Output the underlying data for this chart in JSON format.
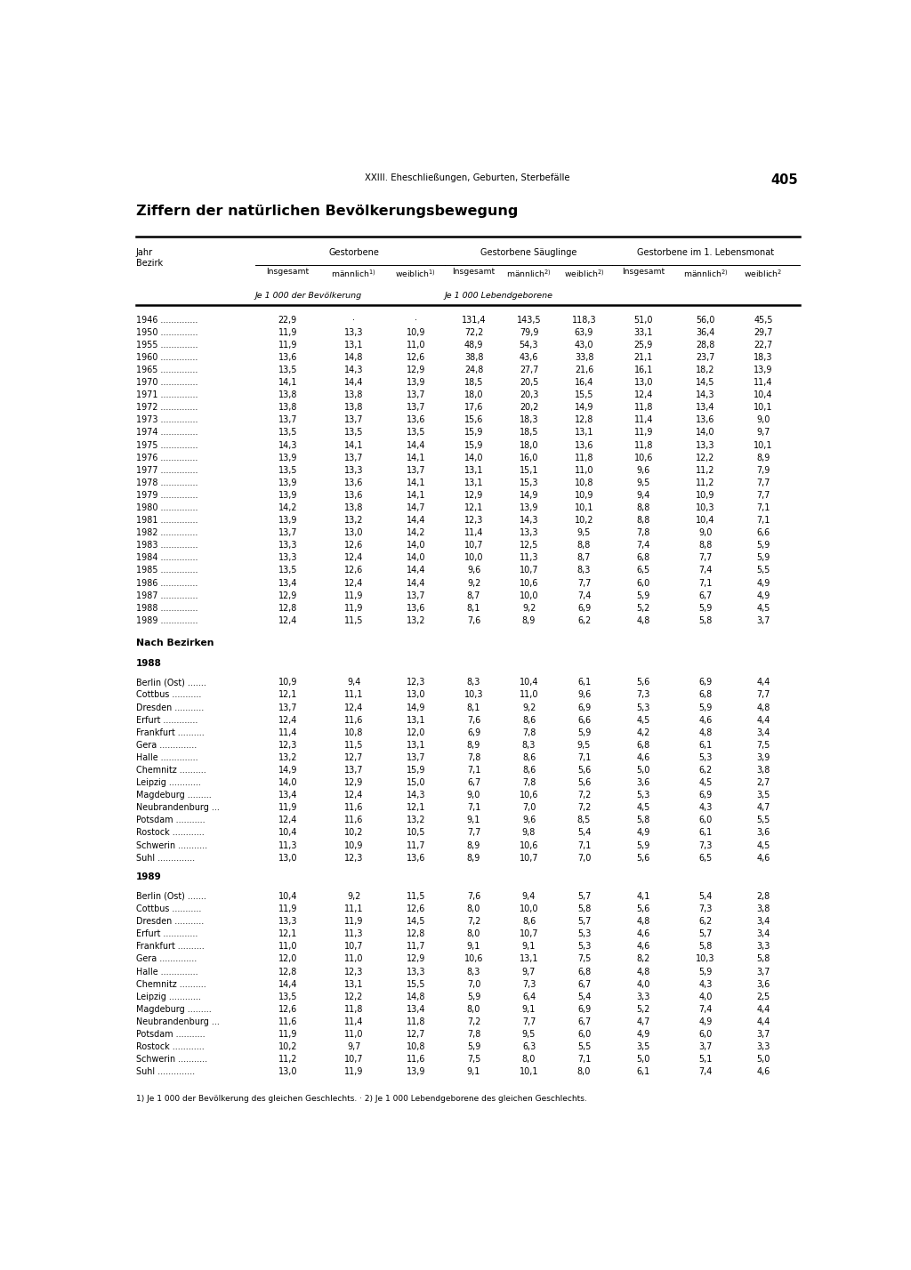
{
  "page_header": "XXIII. Eheschließungen, Geburten, Sterbefälle",
  "page_number": "405",
  "title": "Ziffern der natürlichen Bevölkerungsbewegung",
  "data_years": [
    [
      "1946 ..............",
      "22,9",
      "·",
      "·",
      "131,4",
      "143,5",
      "118,3",
      "51,0",
      "56,0",
      "45,5"
    ],
    [
      "1950 ..............",
      "11,9",
      "13,3",
      "10,9",
      "72,2",
      "79,9",
      "63,9",
      "33,1",
      "36,4",
      "29,7"
    ],
    [
      "1955 ..............",
      "11,9",
      "13,1",
      "11,0",
      "48,9",
      "54,3",
      "43,0",
      "25,9",
      "28,8",
      "22,7"
    ],
    [
      "1960 ..............",
      "13,6",
      "14,8",
      "12,6",
      "38,8",
      "43,6",
      "33,8",
      "21,1",
      "23,7",
      "18,3"
    ],
    [
      "1965 ..............",
      "13,5",
      "14,3",
      "12,9",
      "24,8",
      "27,7",
      "21,6",
      "16,1",
      "18,2",
      "13,9"
    ],
    [
      "1970 ..............",
      "14,1",
      "14,4",
      "13,9",
      "18,5",
      "20,5",
      "16,4",
      "13,0",
      "14,5",
      "11,4"
    ],
    [
      "1971 ..............",
      "13,8",
      "13,8",
      "13,7",
      "18,0",
      "20,3",
      "15,5",
      "12,4",
      "14,3",
      "10,4"
    ],
    [
      "1972 ..............",
      "13,8",
      "13,8",
      "13,7",
      "17,6",
      "20,2",
      "14,9",
      "11,8",
      "13,4",
      "10,1"
    ],
    [
      "1973 ..............",
      "13,7",
      "13,7",
      "13,6",
      "15,6",
      "18,3",
      "12,8",
      "11,4",
      "13,6",
      "9,0"
    ],
    [
      "1974 ..............",
      "13,5",
      "13,5",
      "13,5",
      "15,9",
      "18,5",
      "13,1",
      "11,9",
      "14,0",
      "9,7"
    ],
    [
      "1975 ..............",
      "14,3",
      "14,1",
      "14,4",
      "15,9",
      "18,0",
      "13,6",
      "11,8",
      "13,3",
      "10,1"
    ],
    [
      "1976 ..............",
      "13,9",
      "13,7",
      "14,1",
      "14,0",
      "16,0",
      "11,8",
      "10,6",
      "12,2",
      "8,9"
    ],
    [
      "1977 ..............",
      "13,5",
      "13,3",
      "13,7",
      "13,1",
      "15,1",
      "11,0",
      "9,6",
      "11,2",
      "7,9"
    ],
    [
      "1978 ..............",
      "13,9",
      "13,6",
      "14,1",
      "13,1",
      "15,3",
      "10,8",
      "9,5",
      "11,2",
      "7,7"
    ],
    [
      "1979 ..............",
      "13,9",
      "13,6",
      "14,1",
      "12,9",
      "14,9",
      "10,9",
      "9,4",
      "10,9",
      "7,7"
    ],
    [
      "1980 ..............",
      "14,2",
      "13,8",
      "14,7",
      "12,1",
      "13,9",
      "10,1",
      "8,8",
      "10,3",
      "7,1"
    ],
    [
      "1981 ..............",
      "13,9",
      "13,2",
      "14,4",
      "12,3",
      "14,3",
      "10,2",
      "8,8",
      "10,4",
      "7,1"
    ],
    [
      "1982 ..............",
      "13,7",
      "13,0",
      "14,2",
      "11,4",
      "13,3",
      "9,5",
      "7,8",
      "9,0",
      "6,6"
    ],
    [
      "1983 ..............",
      "13,3",
      "12,6",
      "14,0",
      "10,7",
      "12,5",
      "8,8",
      "7,4",
      "8,8",
      "5,9"
    ],
    [
      "1984 ..............",
      "13,3",
      "12,4",
      "14,0",
      "10,0",
      "11,3",
      "8,7",
      "6,8",
      "7,7",
      "5,9"
    ],
    [
      "1985 ..............",
      "13,5",
      "12,6",
      "14,4",
      "9,6",
      "10,7",
      "8,3",
      "6,5",
      "7,4",
      "5,5"
    ],
    [
      "1986 ..............",
      "13,4",
      "12,4",
      "14,4",
      "9,2",
      "10,6",
      "7,7",
      "6,0",
      "7,1",
      "4,9"
    ],
    [
      "1987 ..............",
      "12,9",
      "11,9",
      "13,7",
      "8,7",
      "10,0",
      "7,4",
      "5,9",
      "6,7",
      "4,9"
    ],
    [
      "1988 ..............",
      "12,8",
      "11,9",
      "13,6",
      "8,1",
      "9,2",
      "6,9",
      "5,2",
      "5,9",
      "4,5"
    ],
    [
      "1989 ..............",
      "12,4",
      "11,5",
      "13,2",
      "7,6",
      "8,9",
      "6,2",
      "4,8",
      "5,8",
      "3,7"
    ]
  ],
  "section_bezirke": "Nach Bezirken",
  "section_1988": "1988",
  "data_1988": [
    [
      "Berlin (Ost) .......",
      "10,9",
      "9,4",
      "12,3",
      "8,3",
      "10,4",
      "6,1",
      "5,6",
      "6,9",
      "4,4"
    ],
    [
      "Cottbus ...........",
      "12,1",
      "11,1",
      "13,0",
      "10,3",
      "11,0",
      "9,6",
      "7,3",
      "6,8",
      "7,7"
    ],
    [
      "Dresden ...........",
      "13,7",
      "12,4",
      "14,9",
      "8,1",
      "9,2",
      "6,9",
      "5,3",
      "5,9",
      "4,8"
    ],
    [
      "Erfurt .............",
      "12,4",
      "11,6",
      "13,1",
      "7,6",
      "8,6",
      "6,6",
      "4,5",
      "4,6",
      "4,4"
    ],
    [
      "Frankfurt ..........",
      "11,4",
      "10,8",
      "12,0",
      "6,9",
      "7,8",
      "5,9",
      "4,2",
      "4,8",
      "3,4"
    ],
    [
      "Gera ..............",
      "12,3",
      "11,5",
      "13,1",
      "8,9",
      "8,3",
      "9,5",
      "6,8",
      "6,1",
      "7,5"
    ],
    [
      "Halle ..............",
      "13,2",
      "12,7",
      "13,7",
      "7,8",
      "8,6",
      "7,1",
      "4,6",
      "5,3",
      "3,9"
    ],
    [
      "Chemnitz ..........",
      "14,9",
      "13,7",
      "15,9",
      "7,1",
      "8,6",
      "5,6",
      "5,0",
      "6,2",
      "3,8"
    ],
    [
      "Leipzig ............",
      "14,0",
      "12,9",
      "15,0",
      "6,7",
      "7,8",
      "5,6",
      "3,6",
      "4,5",
      "2,7"
    ],
    [
      "Magdeburg .........",
      "13,4",
      "12,4",
      "14,3",
      "9,0",
      "10,6",
      "7,2",
      "5,3",
      "6,9",
      "3,5"
    ],
    [
      "Neubrandenburg ...",
      "11,9",
      "11,6",
      "12,1",
      "7,1",
      "7,0",
      "7,2",
      "4,5",
      "4,3",
      "4,7"
    ],
    [
      "Potsdam ...........",
      "12,4",
      "11,6",
      "13,2",
      "9,1",
      "9,6",
      "8,5",
      "5,8",
      "6,0",
      "5,5"
    ],
    [
      "Rostock ............",
      "10,4",
      "10,2",
      "10,5",
      "7,7",
      "9,8",
      "5,4",
      "4,9",
      "6,1",
      "3,6"
    ],
    [
      "Schwerin ...........",
      "11,3",
      "10,9",
      "11,7",
      "8,9",
      "10,6",
      "7,1",
      "5,9",
      "7,3",
      "4,5"
    ],
    [
      "Suhl ..............",
      "13,0",
      "12,3",
      "13,6",
      "8,9",
      "10,7",
      "7,0",
      "5,6",
      "6,5",
      "4,6"
    ]
  ],
  "section_1989": "1989",
  "data_1989": [
    [
      "Berlin (Ost) .......",
      "10,4",
      "9,2",
      "11,5",
      "7,6",
      "9,4",
      "5,7",
      "4,1",
      "5,4",
      "2,8"
    ],
    [
      "Cottbus ...........",
      "11,9",
      "11,1",
      "12,6",
      "8,0",
      "10,0",
      "5,8",
      "5,6",
      "7,3",
      "3,8"
    ],
    [
      "Dresden ...........",
      "13,3",
      "11,9",
      "14,5",
      "7,2",
      "8,6",
      "5,7",
      "4,8",
      "6,2",
      "3,4"
    ],
    [
      "Erfurt .............",
      "12,1",
      "11,3",
      "12,8",
      "8,0",
      "10,7",
      "5,3",
      "4,6",
      "5,7",
      "3,4"
    ],
    [
      "Frankfurt ..........",
      "11,0",
      "10,7",
      "11,7",
      "9,1",
      "9,1",
      "5,3",
      "4,6",
      "5,8",
      "3,3"
    ],
    [
      "Gera ..............",
      "12,0",
      "11,0",
      "12,9",
      "10,6",
      "13,1",
      "7,5",
      "8,2",
      "10,3",
      "5,8"
    ],
    [
      "Halle ..............",
      "12,8",
      "12,3",
      "13,3",
      "8,3",
      "9,7",
      "6,8",
      "4,8",
      "5,9",
      "3,7"
    ],
    [
      "Chemnitz ..........",
      "14,4",
      "13,1",
      "15,5",
      "7,0",
      "7,3",
      "6,7",
      "4,0",
      "4,3",
      "3,6"
    ],
    [
      "Leipzig ............",
      "13,5",
      "12,2",
      "14,8",
      "5,9",
      "6,4",
      "5,4",
      "3,3",
      "4,0",
      "2,5"
    ],
    [
      "Magdeburg .........",
      "12,6",
      "11,8",
      "13,4",
      "8,0",
      "9,1",
      "6,9",
      "5,2",
      "7,4",
      "4,4"
    ],
    [
      "Neubrandenburg ...",
      "11,6",
      "11,4",
      "11,8",
      "7,2",
      "7,7",
      "6,7",
      "4,7",
      "4,9",
      "4,4"
    ],
    [
      "Potsdam ...........",
      "11,9",
      "11,0",
      "12,7",
      "7,8",
      "9,5",
      "6,0",
      "4,9",
      "6,0",
      "3,7"
    ],
    [
      "Rostock ............",
      "10,2",
      "9,7",
      "10,8",
      "5,9",
      "6,3",
      "5,5",
      "3,5",
      "3,7",
      "3,3"
    ],
    [
      "Schwerin ...........",
      "11,2",
      "10,7",
      "11,6",
      "7,5",
      "8,0",
      "7,1",
      "5,0",
      "5,1",
      "5,0"
    ],
    [
      "Suhl ..............",
      "13,0",
      "11,9",
      "13,9",
      "9,1",
      "10,1",
      "8,0",
      "6,1",
      "7,4",
      "4,6"
    ]
  ],
  "footnote": "1) Je 1 000 der Bevölkerung des gleichen Geschlechts. · 2) Je 1 000 Lebendgeborene des gleichen Geschlechts."
}
